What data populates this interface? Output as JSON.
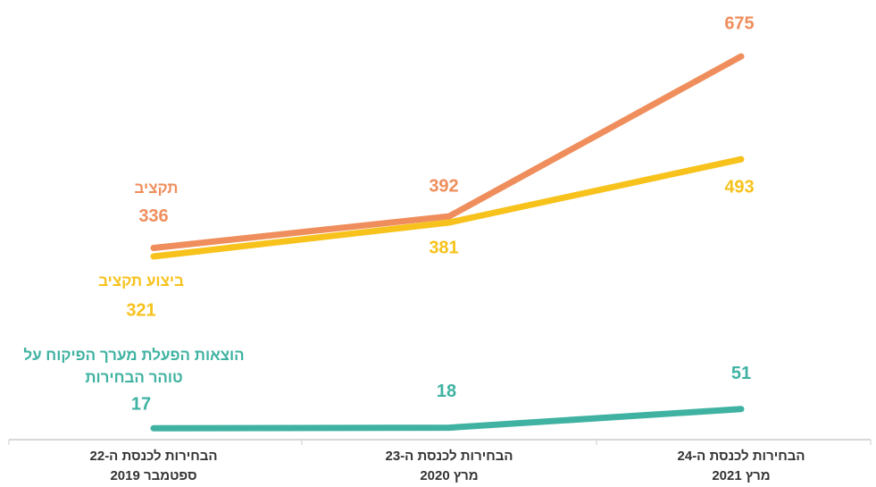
{
  "chart_data": {
    "type": "line",
    "categories": [
      "הבחירות לכנסת ה-22\nספטמבר 2019",
      "הבחירות לכנסת ה-23\nמרץ 2020",
      "הבחירות לכנסת ה-24\nמרץ 2021"
    ],
    "series": [
      {
        "name": "תקציב",
        "color": "#ef8e5c",
        "values": [
          336,
          392,
          675
        ]
      },
      {
        "name": "ביצוע תקציב",
        "color": "#f7c21b",
        "values": [
          321,
          381,
          493
        ]
      },
      {
        "name": "הוצאות הפעלת מערך הפיקוח על טוהר הבחירות",
        "color": "#3fb2a2",
        "values": [
          17,
          18,
          51
        ]
      }
    ],
    "ylim": [
      0,
      770
    ]
  }
}
